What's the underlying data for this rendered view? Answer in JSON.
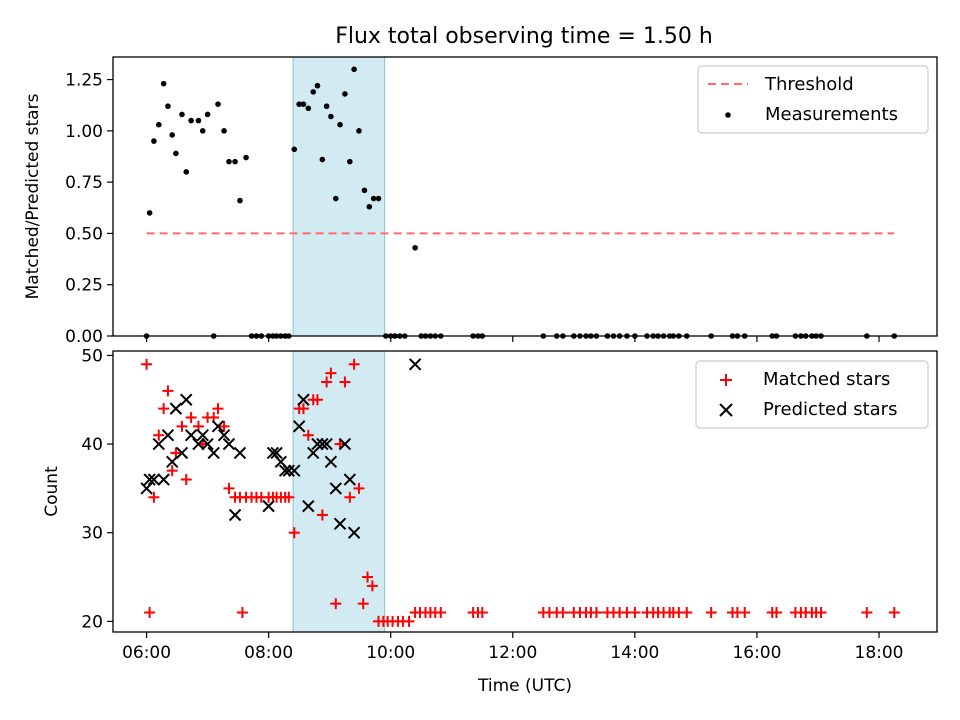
{
  "title": "Flux total observing time = 1.50 h",
  "colors": {
    "threshold": "#ff6b6b",
    "span": "#add8e6",
    "matched": "#ff0000",
    "predicted": "#000000",
    "measurements": "#000000"
  },
  "chart_data": [
    {
      "type": "scatter",
      "ylabel": "Matched/Predicted stars",
      "ylim": [
        0,
        1.36
      ],
      "yticks": [
        0,
        0.25,
        0.5,
        0.75,
        1.0,
        1.25
      ],
      "ytick_labels": [
        "0.00",
        "0.25",
        "0.50",
        "0.75",
        "1.00",
        "1.25"
      ],
      "xlim": [
        5.45,
        18.95
      ],
      "legend_position": "upper right",
      "highlight_span": [
        8.4,
        9.9
      ],
      "threshold": {
        "name": "Threshold",
        "value": 0.5,
        "x_range": [
          6.0,
          18.25
        ],
        "style": "dashed"
      },
      "series": [
        {
          "name": "Measurements",
          "marker": "dot",
          "points": [
            [
              6.0,
              0.0
            ],
            [
              6.05,
              0.6
            ],
            [
              6.12,
              0.95
            ],
            [
              6.2,
              1.03
            ],
            [
              6.28,
              1.23
            ],
            [
              6.35,
              1.12
            ],
            [
              6.42,
              0.98
            ],
            [
              6.48,
              0.89
            ],
            [
              6.58,
              1.08
            ],
            [
              6.65,
              0.8
            ],
            [
              6.73,
              1.05
            ],
            [
              6.85,
              1.05
            ],
            [
              6.92,
              1.0
            ],
            [
              7.0,
              1.08
            ],
            [
              7.1,
              0.0
            ],
            [
              7.17,
              1.13
            ],
            [
              7.27,
              1.0
            ],
            [
              7.35,
              0.85
            ],
            [
              7.45,
              0.85
            ],
            [
              7.53,
              0.66
            ],
            [
              7.63,
              0.87
            ],
            [
              7.72,
              0.0
            ],
            [
              7.8,
              0.0
            ],
            [
              7.88,
              0.0
            ],
            [
              8.0,
              0.0
            ],
            [
              8.07,
              0.0
            ],
            [
              8.13,
              0.0
            ],
            [
              8.2,
              0.0
            ],
            [
              8.27,
              0.0
            ],
            [
              8.33,
              0.0
            ],
            [
              8.42,
              0.91
            ],
            [
              8.5,
              1.13
            ],
            [
              8.57,
              1.13
            ],
            [
              8.65,
              1.11
            ],
            [
              8.73,
              1.19
            ],
            [
              8.8,
              1.22
            ],
            [
              8.88,
              0.86
            ],
            [
              8.95,
              1.12
            ],
            [
              9.02,
              1.07
            ],
            [
              9.1,
              0.67
            ],
            [
              9.17,
              1.03
            ],
            [
              9.25,
              1.18
            ],
            [
              9.33,
              0.85
            ],
            [
              9.4,
              1.3
            ],
            [
              9.48,
              1.0
            ],
            [
              9.57,
              0.71
            ],
            [
              9.65,
              0.63
            ],
            [
              9.72,
              0.67
            ],
            [
              9.8,
              0.67
            ],
            [
              9.92,
              0.0
            ],
            [
              10.0,
              0.0
            ],
            [
              10.07,
              0.0
            ],
            [
              10.15,
              0.0
            ],
            [
              10.23,
              0.0
            ],
            [
              10.4,
              0.43
            ],
            [
              10.5,
              0.0
            ],
            [
              10.57,
              0.0
            ],
            [
              10.65,
              0.0
            ],
            [
              10.73,
              0.0
            ],
            [
              10.82,
              0.0
            ],
            [
              11.35,
              0.0
            ],
            [
              11.43,
              0.0
            ],
            [
              11.5,
              0.0
            ],
            [
              12.5,
              0.0
            ],
            [
              12.72,
              0.0
            ],
            [
              12.82,
              0.0
            ],
            [
              13.0,
              0.0
            ],
            [
              13.1,
              0.0
            ],
            [
              13.2,
              0.0
            ],
            [
              13.28,
              0.0
            ],
            [
              13.37,
              0.0
            ],
            [
              13.55,
              0.0
            ],
            [
              13.65,
              0.0
            ],
            [
              13.75,
              0.0
            ],
            [
              13.87,
              0.0
            ],
            [
              14.0,
              0.0
            ],
            [
              14.2,
              0.0
            ],
            [
              14.3,
              0.0
            ],
            [
              14.38,
              0.0
            ],
            [
              14.47,
              0.0
            ],
            [
              14.57,
              0.0
            ],
            [
              14.63,
              0.0
            ],
            [
              14.72,
              0.0
            ],
            [
              14.85,
              0.0
            ],
            [
              15.25,
              0.0
            ],
            [
              15.6,
              0.0
            ],
            [
              15.68,
              0.0
            ],
            [
              15.8,
              0.0
            ],
            [
              16.25,
              0.0
            ],
            [
              16.32,
              0.0
            ],
            [
              16.63,
              0.0
            ],
            [
              16.72,
              0.0
            ],
            [
              16.8,
              0.0
            ],
            [
              16.9,
              0.0
            ],
            [
              16.97,
              0.0
            ],
            [
              17.05,
              0.0
            ],
            [
              17.8,
              0.0
            ],
            [
              18.25,
              0.0
            ]
          ]
        }
      ]
    },
    {
      "type": "scatter",
      "xlabel": "Time (UTC)",
      "ylabel": "Count",
      "ylim": [
        18.8,
        50.5
      ],
      "yticks": [
        20,
        30,
        40,
        50
      ],
      "ytick_labels": [
        "20",
        "30",
        "40",
        "50"
      ],
      "xlim": [
        5.45,
        18.95
      ],
      "xticks": [
        6,
        8,
        10,
        12,
        14,
        16,
        18
      ],
      "xtick_labels": [
        "06:00",
        "08:00",
        "10:00",
        "12:00",
        "14:00",
        "16:00",
        "18:00"
      ],
      "legend_position": "upper right",
      "highlight_span": [
        8.4,
        9.9
      ],
      "series": [
        {
          "name": "Matched stars",
          "marker": "plus",
          "points": [
            [
              6.0,
              49
            ],
            [
              6.05,
              21
            ],
            [
              6.12,
              34
            ],
            [
              6.2,
              41
            ],
            [
              6.28,
              44
            ],
            [
              6.35,
              46
            ],
            [
              6.42,
              37
            ],
            [
              6.48,
              39
            ],
            [
              6.58,
              42
            ],
            [
              6.65,
              36
            ],
            [
              6.73,
              43
            ],
            [
              6.85,
              42
            ],
            [
              6.92,
              40
            ],
            [
              7.0,
              43
            ],
            [
              7.1,
              43
            ],
            [
              7.17,
              44
            ],
            [
              7.27,
              42
            ],
            [
              7.35,
              35
            ],
            [
              7.45,
              34
            ],
            [
              7.53,
              34
            ],
            [
              7.57,
              21
            ],
            [
              7.63,
              34
            ],
            [
              7.72,
              34
            ],
            [
              7.8,
              34
            ],
            [
              7.88,
              34
            ],
            [
              8.0,
              34
            ],
            [
              8.07,
              34
            ],
            [
              8.13,
              34
            ],
            [
              8.2,
              34
            ],
            [
              8.27,
              34
            ],
            [
              8.33,
              34
            ],
            [
              8.42,
              30
            ],
            [
              8.5,
              44
            ],
            [
              8.57,
              44
            ],
            [
              8.65,
              41
            ],
            [
              8.73,
              45
            ],
            [
              8.8,
              45
            ],
            [
              8.88,
              32
            ],
            [
              8.95,
              47
            ],
            [
              9.02,
              48
            ],
            [
              9.1,
              22
            ],
            [
              9.17,
              40
            ],
            [
              9.25,
              47
            ],
            [
              9.33,
              34
            ],
            [
              9.4,
              49
            ],
            [
              9.48,
              35
            ],
            [
              9.55,
              22
            ],
            [
              9.62,
              25
            ],
            [
              9.7,
              24
            ],
            [
              9.8,
              20
            ],
            [
              9.88,
              20
            ],
            [
              9.95,
              20
            ],
            [
              10.03,
              20
            ],
            [
              10.12,
              20
            ],
            [
              10.2,
              20
            ],
            [
              10.3,
              20
            ],
            [
              10.4,
              21
            ],
            [
              10.48,
              21
            ],
            [
              10.57,
              21
            ],
            [
              10.65,
              21
            ],
            [
              10.73,
              21
            ],
            [
              10.82,
              21
            ],
            [
              11.35,
              21
            ],
            [
              11.43,
              21
            ],
            [
              11.5,
              21
            ],
            [
              12.5,
              21
            ],
            [
              12.6,
              21
            ],
            [
              12.72,
              21
            ],
            [
              12.82,
              21
            ],
            [
              13.0,
              21
            ],
            [
              13.1,
              21
            ],
            [
              13.2,
              21
            ],
            [
              13.28,
              21
            ],
            [
              13.37,
              21
            ],
            [
              13.55,
              21
            ],
            [
              13.65,
              21
            ],
            [
              13.75,
              21
            ],
            [
              13.87,
              21
            ],
            [
              14.0,
              21
            ],
            [
              14.2,
              21
            ],
            [
              14.3,
              21
            ],
            [
              14.38,
              21
            ],
            [
              14.47,
              21
            ],
            [
              14.57,
              21
            ],
            [
              14.63,
              21
            ],
            [
              14.72,
              21
            ],
            [
              14.85,
              21
            ],
            [
              15.25,
              21
            ],
            [
              15.6,
              21
            ],
            [
              15.68,
              21
            ],
            [
              15.8,
              21
            ],
            [
              16.25,
              21
            ],
            [
              16.32,
              21
            ],
            [
              16.63,
              21
            ],
            [
              16.72,
              21
            ],
            [
              16.8,
              21
            ],
            [
              16.9,
              21
            ],
            [
              16.97,
              21
            ],
            [
              17.05,
              21
            ],
            [
              17.8,
              21
            ],
            [
              18.25,
              21
            ]
          ]
        },
        {
          "name": "Predicted stars",
          "marker": "x",
          "points": [
            [
              6.0,
              35
            ],
            [
              6.05,
              36
            ],
            [
              6.12,
              36
            ],
            [
              6.2,
              40
            ],
            [
              6.28,
              36
            ],
            [
              6.35,
              41
            ],
            [
              6.42,
              38
            ],
            [
              6.48,
              44
            ],
            [
              6.58,
              39
            ],
            [
              6.65,
              45
            ],
            [
              6.73,
              41
            ],
            [
              6.85,
              40
            ],
            [
              6.92,
              41
            ],
            [
              7.0,
              40
            ],
            [
              7.1,
              39
            ],
            [
              7.17,
              42
            ],
            [
              7.27,
              41
            ],
            [
              7.35,
              40
            ],
            [
              7.45,
              32
            ],
            [
              7.53,
              39
            ],
            [
              8.0,
              33
            ],
            [
              8.07,
              39
            ],
            [
              8.13,
              39
            ],
            [
              8.2,
              38
            ],
            [
              8.27,
              37
            ],
            [
              8.33,
              37
            ],
            [
              8.42,
              37
            ],
            [
              8.5,
              42
            ],
            [
              8.57,
              45
            ],
            [
              8.65,
              33
            ],
            [
              8.73,
              39
            ],
            [
              8.8,
              40
            ],
            [
              8.88,
              40
            ],
            [
              8.95,
              40
            ],
            [
              9.02,
              38
            ],
            [
              9.1,
              35
            ],
            [
              9.17,
              31
            ],
            [
              9.25,
              40
            ],
            [
              9.33,
              36
            ],
            [
              9.4,
              30
            ],
            [
              10.4,
              49
            ]
          ]
        }
      ]
    }
  ]
}
